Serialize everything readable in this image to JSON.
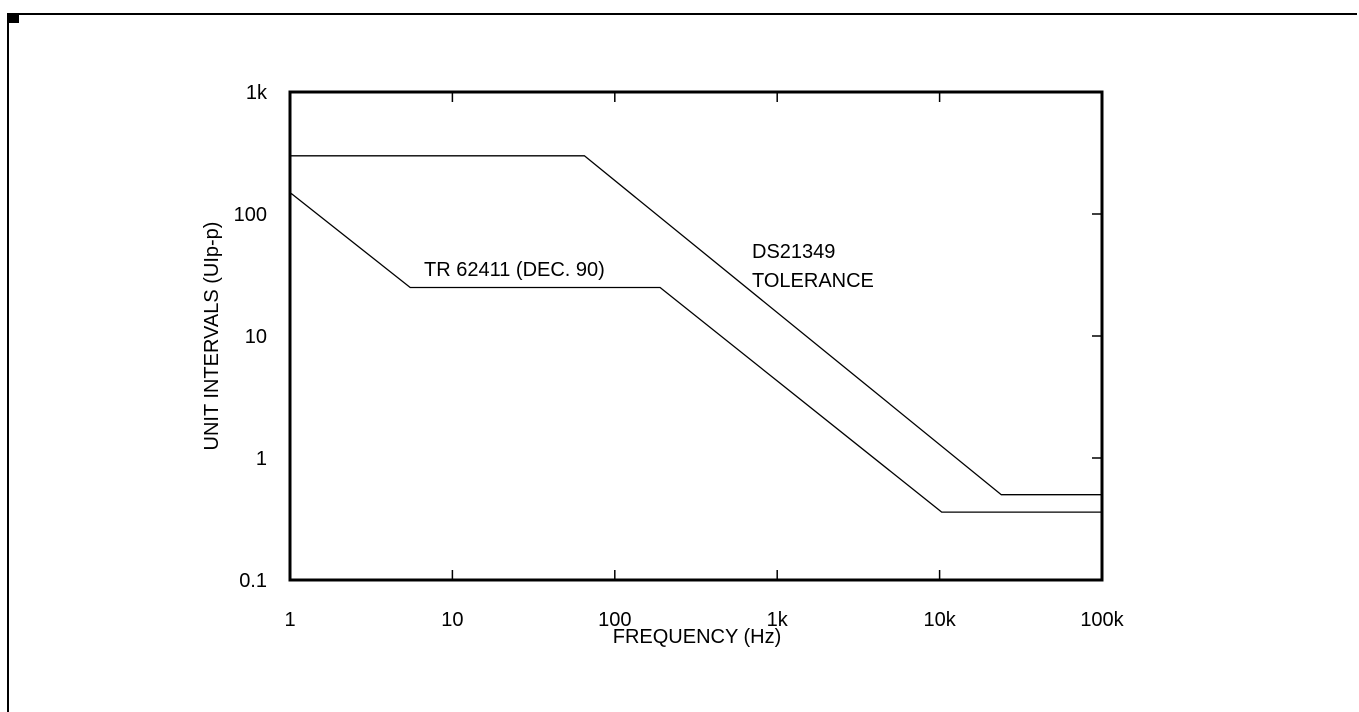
{
  "chart_data": {
    "type": "line",
    "x_scale": "log",
    "y_scale": "log",
    "xlim": [
      1,
      100000
    ],
    "ylim": [
      0.1,
      1000
    ],
    "xlabel": "FREQUENCY (Hz)",
    "ylabel": "UNIT INTERVALS (UIp-p)",
    "x_ticks": [
      {
        "value": 1,
        "label": "1"
      },
      {
        "value": 10,
        "label": "10"
      },
      {
        "value": 100,
        "label": "100"
      },
      {
        "value": 1000,
        "label": "1k"
      },
      {
        "value": 10000,
        "label": "10k"
      },
      {
        "value": 100000,
        "label": "100k"
      }
    ],
    "y_ticks": [
      {
        "value": 0.1,
        "label": "0.1"
      },
      {
        "value": 1,
        "label": "1"
      },
      {
        "value": 10,
        "label": "10"
      },
      {
        "value": 100,
        "label": "100"
      },
      {
        "value": 1000,
        "label": "1k"
      }
    ],
    "series": [
      {
        "name": "DS21349 TOLERANCE",
        "x": [
          1,
          65,
          24000,
          100000
        ],
        "y": [
          300,
          300,
          0.5,
          0.5
        ]
      },
      {
        "name": "TR 62411 (DEC. 90)",
        "x": [
          1,
          5.5,
          190,
          10300,
          100000
        ],
        "y": [
          150,
          25,
          25,
          0.36,
          0.36
        ]
      }
    ],
    "annotations": [
      {
        "lines": [
          "TR 62411 (DEC. 90)"
        ],
        "series": 1
      },
      {
        "lines": [
          "DS21349",
          "TOLERANCE"
        ],
        "series": 0
      }
    ],
    "grid": false,
    "colors": {
      "line": "#000000",
      "frame": "#000000",
      "background": "#ffffff"
    }
  }
}
